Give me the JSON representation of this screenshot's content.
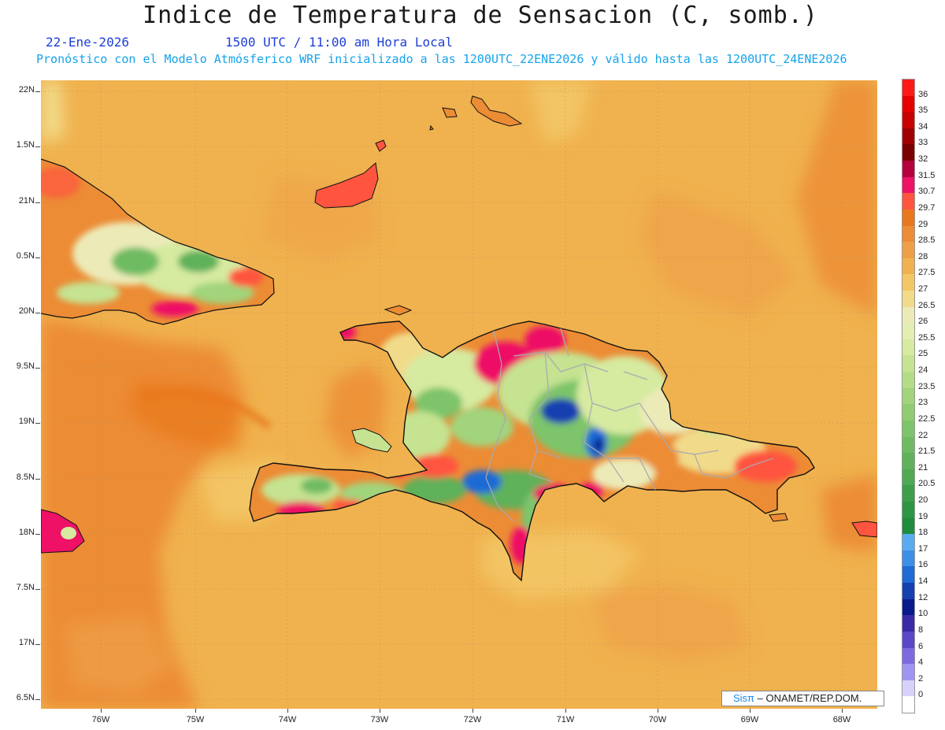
{
  "title": "Indice de Temperatura de Sensacion (C, somb.)",
  "date": "22-Ene-2026",
  "time": "1500 UTC / 11:00 am Hora Local",
  "forecast_line": "Pronóstico con el Modelo Atmósferico WRF inicializado a las 1200UTC_22ENE2026 y válido hasta las  1200UTC_24ENE2026",
  "credit": {
    "brand": "Sisπ",
    "text": "– ONAMET/REP.DOM."
  },
  "axes": {
    "lat_labels": [
      "22N",
      "1.5N",
      "21N",
      "0.5N",
      "20N",
      "9.5N",
      "19N",
      "8.5N",
      "18N",
      "7.5N",
      "17N",
      "6.5N"
    ],
    "lon_labels": [
      "76W",
      "75W",
      "74W",
      "73W",
      "72W",
      "71W",
      "70W",
      "69W",
      "68W"
    ]
  },
  "legend": [
    {
      "label": "36",
      "color": "#ff1a1a"
    },
    {
      "label": "35",
      "color": "#e60000"
    },
    {
      "label": "34",
      "color": "#c80000"
    },
    {
      "label": "33",
      "color": "#a00000"
    },
    {
      "label": "32",
      "color": "#7a0000"
    },
    {
      "label": "31.5",
      "color": "#b3003c"
    },
    {
      "label": "30.7",
      "color": "#ee1166"
    },
    {
      "label": "29.7",
      "color": "#ff5540"
    },
    {
      "label": "29",
      "color": "#e9771e"
    },
    {
      "label": "28.5",
      "color": "#ec8c35"
    },
    {
      "label": "28",
      "color": "#eea048"
    },
    {
      "label": "27.5",
      "color": "#f0b24e"
    },
    {
      "label": "27",
      "color": "#f3c766"
    },
    {
      "label": "26.5",
      "color": "#f1db8a"
    },
    {
      "label": "26",
      "color": "#ecebb8"
    },
    {
      "label": "25.5",
      "color": "#e3eeb2"
    },
    {
      "label": "25",
      "color": "#d6eaa0"
    },
    {
      "label": "24",
      "color": "#c5e391"
    },
    {
      "label": "23.5",
      "color": "#b4dc86"
    },
    {
      "label": "23",
      "color": "#a1d47b"
    },
    {
      "label": "22.5",
      "color": "#8fcc72"
    },
    {
      "label": "22",
      "color": "#7dc46a"
    },
    {
      "label": "21.5",
      "color": "#6ebb62"
    },
    {
      "label": "21",
      "color": "#5fb15a"
    },
    {
      "label": "20.5",
      "color": "#4fa852"
    },
    {
      "label": "20",
      "color": "#3e9e4a"
    },
    {
      "label": "19",
      "color": "#2e9543"
    },
    {
      "label": "18",
      "color": "#1f8c3e"
    },
    {
      "label": "17",
      "color": "#5aaaf0"
    },
    {
      "label": "16",
      "color": "#3d8ee6"
    },
    {
      "label": "14",
      "color": "#1f6ad6"
    },
    {
      "label": "12",
      "color": "#1540b0"
    },
    {
      "label": "10",
      "color": "#0a1a8a"
    },
    {
      "label": "8",
      "color": "#3a2aa8"
    },
    {
      "label": "6",
      "color": "#5a48c8"
    },
    {
      "label": "4",
      "color": "#7c6ae0"
    },
    {
      "label": "2",
      "color": "#a094f2"
    },
    {
      "label": "0",
      "color": "#d6d2fb"
    }
  ]
}
